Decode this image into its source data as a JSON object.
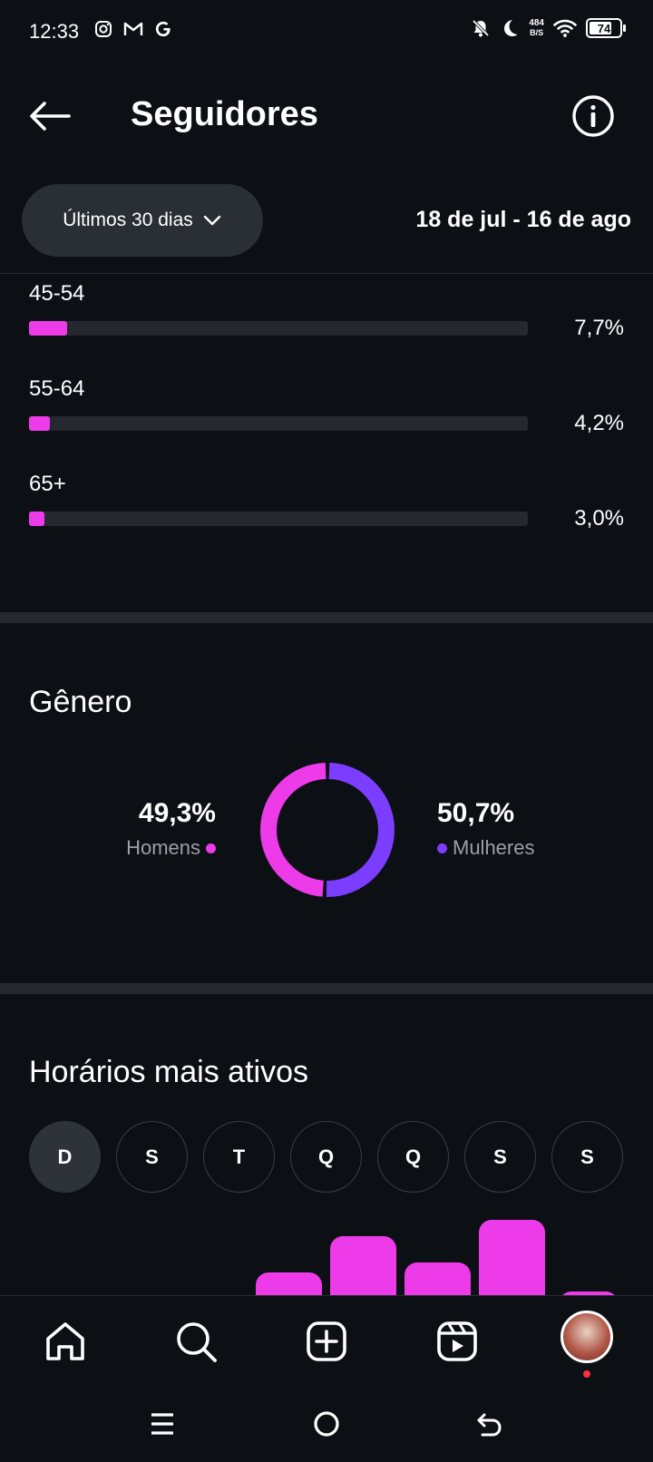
{
  "status_bar": {
    "time": "12:33",
    "net_speed_value": "484",
    "net_speed_unit": "B/S",
    "battery_level": "74"
  },
  "header": {
    "title": "Seguidores"
  },
  "range": {
    "selector_label": "Últimos 30 dias",
    "date_range": "18 de jul - 16 de ago"
  },
  "age": {
    "rows": [
      {
        "label": "45-54",
        "value": "7,7%",
        "fraction": 0.077
      },
      {
        "label": "55-64",
        "value": "4,2%",
        "fraction": 0.042
      },
      {
        "label": "65+",
        "value": "3,0%",
        "fraction": 0.03
      }
    ]
  },
  "gender": {
    "title": "Gênero",
    "men": {
      "percent": "49,3%",
      "label": "Homens",
      "fraction": 0.493,
      "color": "#ed3bea"
    },
    "women": {
      "percent": "50,7%",
      "label": "Mulheres",
      "fraction": 0.507,
      "color": "#7b3dff"
    }
  },
  "active_hours": {
    "title": "Horários mais ativos",
    "days": [
      "D",
      "S",
      "T",
      "Q",
      "Q",
      "S",
      "S"
    ],
    "selected_day_index": 0,
    "bar_color": "#ed3bea"
  },
  "colors": {
    "background": "#0c0f14",
    "accent_pink": "#ed3bea",
    "accent_purple": "#7b3dff",
    "track": "#25282e"
  },
  "bottom_nav": {
    "items": [
      "home-icon",
      "search-icon",
      "create-icon",
      "reels-icon",
      "profile-avatar"
    ]
  }
}
